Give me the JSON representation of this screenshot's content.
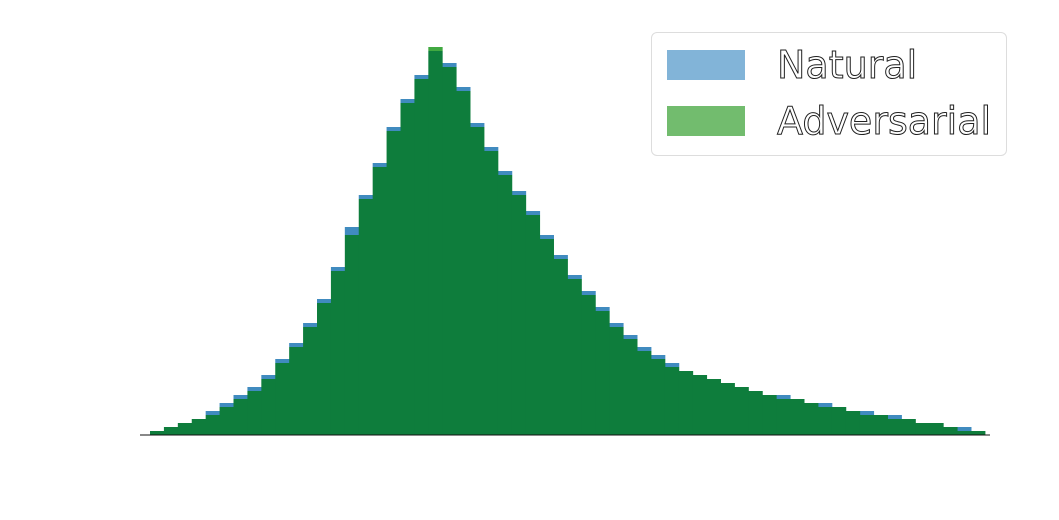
{
  "chart_data": {
    "type": "histogram",
    "title": "",
    "xlabel": "",
    "ylabel": "",
    "xlim": [
      0,
      1
    ],
    "ylim": [
      0,
      1
    ],
    "grid": false,
    "legend_position": "top-right",
    "bins": 60,
    "bin_range": [
      0,
      1
    ],
    "series": [
      {
        "name": "Natural",
        "color": "#1f77b4",
        "alpha": 0.55,
        "values": [
          0.01,
          0.02,
          0.03,
          0.04,
          0.06,
          0.08,
          0.1,
          0.12,
          0.15,
          0.19,
          0.23,
          0.28,
          0.34,
          0.42,
          0.52,
          0.6,
          0.68,
          0.77,
          0.84,
          0.9,
          0.96,
          0.93,
          0.87,
          0.78,
          0.72,
          0.66,
          0.61,
          0.56,
          0.5,
          0.45,
          0.4,
          0.36,
          0.32,
          0.28,
          0.25,
          0.22,
          0.2,
          0.18,
          0.16,
          0.15,
          0.14,
          0.13,
          0.12,
          0.11,
          0.1,
          0.1,
          0.09,
          0.08,
          0.08,
          0.07,
          0.06,
          0.06,
          0.05,
          0.05,
          0.04,
          0.03,
          0.03,
          0.02,
          0.02,
          0.01
        ]
      },
      {
        "name": "Adversarial",
        "color": "#2ca02c",
        "alpha": 0.65,
        "values": [
          0.01,
          0.02,
          0.03,
          0.04,
          0.05,
          0.07,
          0.09,
          0.11,
          0.14,
          0.18,
          0.22,
          0.27,
          0.33,
          0.41,
          0.5,
          0.59,
          0.67,
          0.76,
          0.83,
          0.89,
          0.97,
          0.92,
          0.86,
          0.77,
          0.71,
          0.65,
          0.6,
          0.55,
          0.49,
          0.44,
          0.39,
          0.35,
          0.31,
          0.27,
          0.24,
          0.21,
          0.19,
          0.17,
          0.16,
          0.15,
          0.14,
          0.13,
          0.12,
          0.11,
          0.1,
          0.09,
          0.09,
          0.08,
          0.07,
          0.07,
          0.06,
          0.05,
          0.05,
          0.04,
          0.04,
          0.03,
          0.03,
          0.02,
          0.01,
          0.01
        ]
      }
    ],
    "overlap_color": "#0e7d3c"
  },
  "legend": {
    "items": [
      {
        "label": "Natural",
        "color": "#82b4d8"
      },
      {
        "label": "Adversarial",
        "color": "#72bc6e"
      }
    ]
  }
}
